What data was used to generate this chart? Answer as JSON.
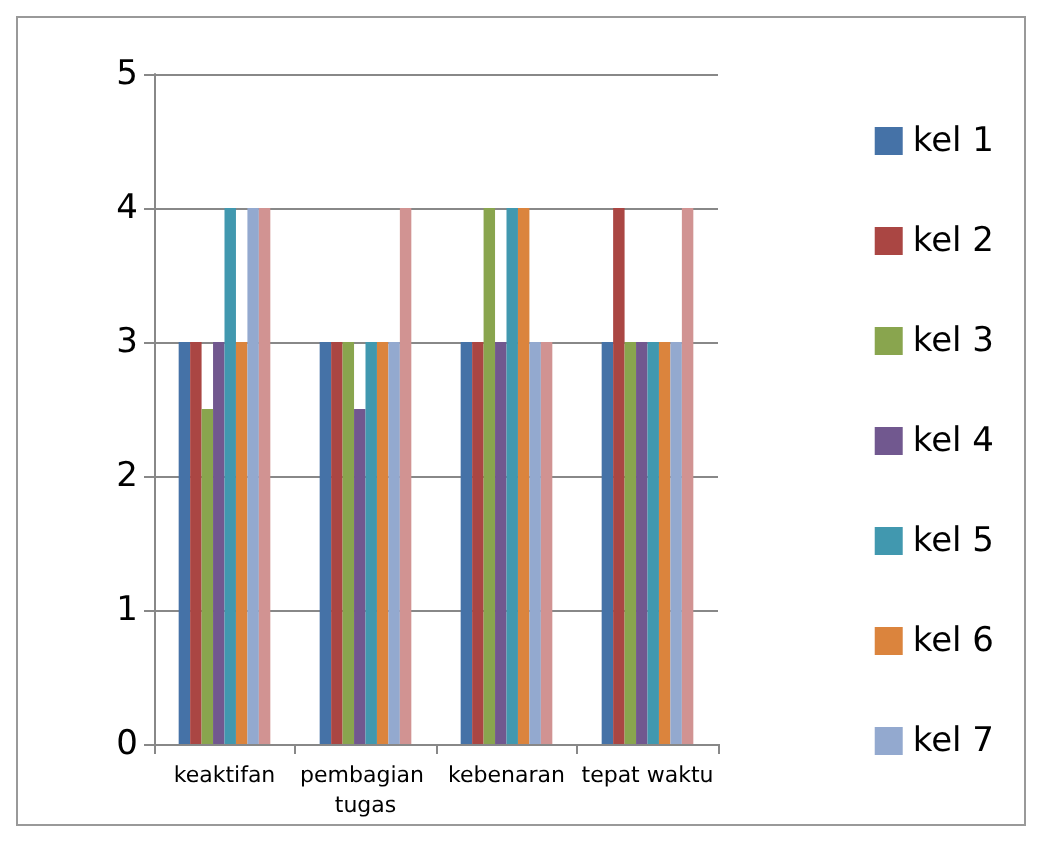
{
  "chart_data": {
    "type": "bar",
    "categories": [
      "keaktifan",
      "pembagian tugas",
      "kebenaran",
      "tepat waktu"
    ],
    "series": [
      {
        "name": "kel 1",
        "color": "#4572a7",
        "values": [
          3,
          3,
          3,
          3
        ]
      },
      {
        "name": "kel 2",
        "color": "#aa4643",
        "values": [
          3,
          3,
          3,
          4
        ]
      },
      {
        "name": "kel 3",
        "color": "#89a54e",
        "values": [
          2.5,
          3,
          4,
          3
        ]
      },
      {
        "name": "kel 4",
        "color": "#71588f",
        "values": [
          3,
          2.5,
          3,
          3
        ]
      },
      {
        "name": "kel 5",
        "color": "#4198af",
        "values": [
          4,
          3,
          4,
          3
        ]
      },
      {
        "name": "kel 6",
        "color": "#db843d",
        "values": [
          3,
          3,
          4,
          3
        ]
      },
      {
        "name": "kel 7",
        "color": "#93a9cf",
        "values": [
          4,
          3,
          3,
          3
        ]
      },
      {
        "color": "#d19392",
        "values": [
          4,
          4,
          3,
          4
        ]
      }
    ],
    "ylim": [
      0,
      5
    ],
    "yticks": [
      0,
      1,
      2,
      3,
      4,
      5
    ],
    "grid": "y",
    "legend": "right"
  }
}
